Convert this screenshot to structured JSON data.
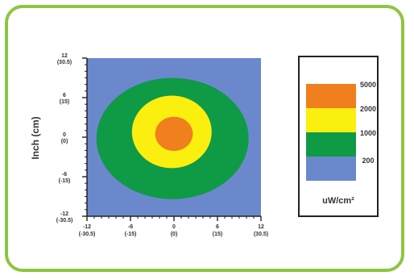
{
  "chart_data": {
    "type": "heatmap",
    "ylabel": "Inch (cm)",
    "x_ticks": [
      {
        "value": -12,
        "label": "-12",
        "cm": "(-30.5)"
      },
      {
        "value": -6,
        "label": "-6",
        "cm": "(-15)"
      },
      {
        "value": 0,
        "label": "0",
        "cm": "(0)"
      },
      {
        "value": 6,
        "label": "6",
        "cm": "(15)"
      },
      {
        "value": 12,
        "label": "12",
        "cm": "(30.5)"
      }
    ],
    "y_ticks": [
      {
        "value": 12,
        "label": "12",
        "cm": "(30.5)"
      },
      {
        "value": 6,
        "label": "6",
        "cm": "(15)"
      },
      {
        "value": 0,
        "label": "0",
        "cm": "(0)"
      },
      {
        "value": -6,
        "label": "-6",
        "cm": "(-15)"
      },
      {
        "value": -12,
        "label": "-12",
        "cm": "(-30.5)"
      }
    ],
    "xlim": [
      -12,
      12
    ],
    "ylim": [
      -12,
      12
    ],
    "levels": [
      {
        "label": "5000",
        "color": "#f07f1e",
        "rx": 2.6,
        "ry": 2.6,
        "cx": 0,
        "cy": 0.5
      },
      {
        "label": "2000",
        "color": "#fbef10",
        "rx": 5.5,
        "ry": 5.5,
        "cx": -0.3,
        "cy": 0.8
      },
      {
        "label": "1000",
        "color": "#0f9a46",
        "rx": 10.5,
        "ry": 9.2,
        "cx": -0.2,
        "cy": -0.2
      },
      {
        "label": "200",
        "color": "#6b88cd"
      }
    ],
    "legend_unit": "uW/cm²",
    "legend_position": "right"
  }
}
